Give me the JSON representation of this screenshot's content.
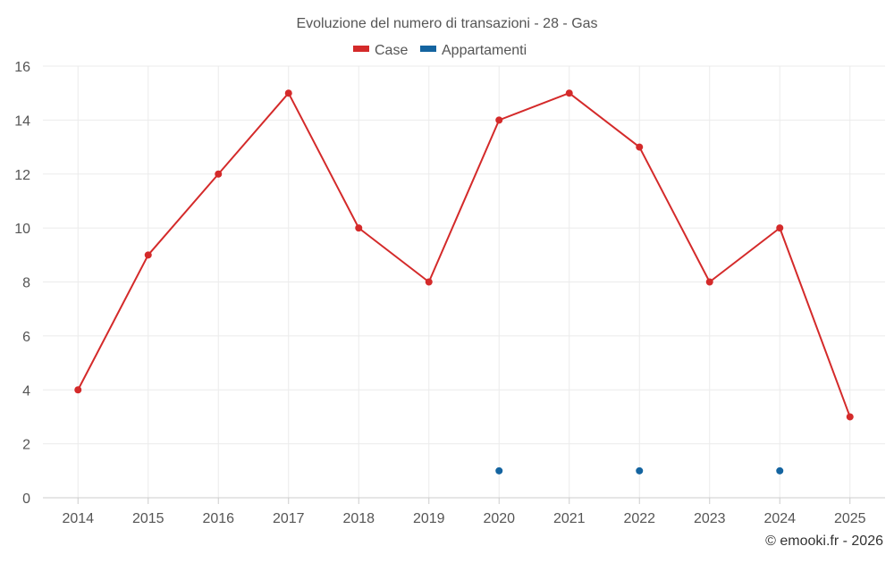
{
  "chart_data": {
    "type": "line",
    "title": "Evoluzione del numero di transazioni - 28 - Gas",
    "xlabel": "",
    "ylabel": "",
    "categories": [
      "2014",
      "2015",
      "2016",
      "2017",
      "2018",
      "2019",
      "2020",
      "2021",
      "2022",
      "2023",
      "2024",
      "2025"
    ],
    "ylim": [
      0,
      16
    ],
    "yticks": [
      0,
      2,
      4,
      6,
      8,
      10,
      12,
      14,
      16
    ],
    "grid": true,
    "legend_position": "top-center",
    "series": [
      {
        "name": "Case",
        "color": "#d42a2a",
        "values": [
          4,
          9,
          12,
          15,
          10,
          8,
          14,
          15,
          13,
          8,
          10,
          3
        ]
      },
      {
        "name": "Appartamenti",
        "color": "#1464a0",
        "values": [
          null,
          null,
          null,
          null,
          null,
          null,
          1,
          null,
          1,
          null,
          1,
          null
        ]
      }
    ]
  },
  "footer": {
    "credit": "© emooki.fr - 2026"
  }
}
